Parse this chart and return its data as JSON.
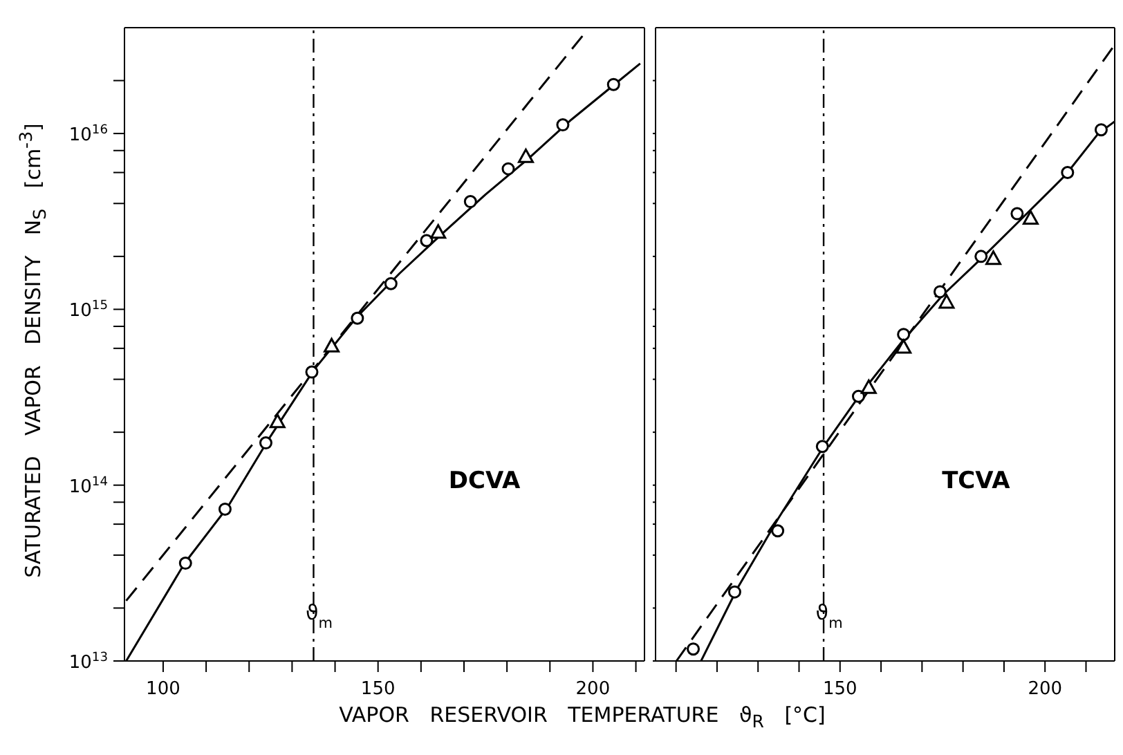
{
  "chart_data": [
    {
      "type": "scatter",
      "xlabel": "VAPOR RESERVOIR TEMPERATURE ϑ$_{R}$ [°C]",
      "ylabel": "SATURATED VAPOR DENSITY N$_{S}$ [cm$^{-3}$]",
      "log": "y",
      "xlim": [
        91,
        212
      ],
      "xticks": [
        100,
        {
          "value": 110,
          "label": null
        },
        {
          "value": 120,
          "label": null
        },
        {
          "value": 130,
          "label": null
        },
        {
          "value": 140,
          "label": null
        },
        150,
        {
          "value": 160,
          "label": null
        },
        {
          "value": 170,
          "label": null
        },
        {
          "value": 180,
          "label": null
        },
        {
          "value": 190,
          "label": null
        },
        200,
        {
          "value": 210,
          "label": null
        }
      ],
      "ylim": [
        10000000000000.0,
        4e+16
      ],
      "yticks": [
        {
          "value": 10000000000000.0,
          "label": "10$^{13}$"
        },
        {
          "value": 20000000000000.0,
          "label": null
        },
        {
          "value": 40000000000000.0,
          "label": null
        },
        {
          "value": 60000000000000.0,
          "label": null
        },
        {
          "value": 80000000000000.0,
          "label": null
        },
        {
          "value": 100000000000000.0,
          "label": "10$^{14}$"
        },
        {
          "value": 200000000000000.0,
          "label": null
        },
        {
          "value": 400000000000000.0,
          "label": null
        },
        {
          "value": 600000000000000.0,
          "label": null
        },
        {
          "value": 800000000000000.0,
          "label": null
        },
        {
          "value": 1000000000000000.0,
          "label": "10$^{15}$"
        },
        {
          "value": 2000000000000000.0,
          "label": null
        },
        {
          "value": 4000000000000000.0,
          "label": null
        },
        {
          "value": 6000000000000000.0,
          "label": null
        },
        {
          "value": 8000000000000000.0,
          "label": null
        },
        {
          "value": 1e+16,
          "label": "10$^{16}$"
        },
        {
          "value": 2e+16,
          "label": null
        }
      ],
      "annotations": [
        "DCVA"
      ],
      "ref_lines": [
        {
          "axis": "x",
          "value": 135,
          "label": "ϑ$_{m}$",
          "color": "#000000"
        }
      ],
      "series": [
        {
          "marker": "circle",
          "color": "#000000",
          "x": [
            105.2,
            114.4,
            123.9,
            134.6,
            145.2,
            153,
            161.3,
            171.5,
            180.3,
            193,
            204.8
          ],
          "values": [
            36000000000000.0,
            73000000000000.0,
            174000000000000.0,
            440000000000000.0,
            890000000000000.0,
            1400000000000000.0,
            2460000000000000.0,
            4100000000000000.0,
            6300000000000000.0,
            1.12e+16,
            1.9e+16
          ]
        },
        {
          "marker": "triangle",
          "color": "#000000",
          "x": [
            126.6,
            139.2,
            164,
            184.4
          ],
          "values": [
            230000000000000.0,
            620000000000000.0,
            2750000000000000.0,
            7400000000000000.0
          ]
        },
        {
          "type": "line",
          "line_style": "solid",
          "color": "#000000",
          "x": [
            91.4,
            105,
            115,
            125,
            135,
            145,
            155,
            165,
            175,
            185,
            195,
            205,
            211
          ],
          "values": [
            10000000000000.0,
            36000000000000.0,
            75000000000000.0,
            190000000000000.0,
            450000000000000.0,
            900000000000000.0,
            1600000000000000.0,
            2700000000000000.0,
            4500000000000000.0,
            7200000000000000.0,
            1.2e+16,
            1.9e+16,
            2.5e+16
          ]
        },
        {
          "type": "line",
          "line_style": "dashed",
          "color": "#000000",
          "x": [
            91.4,
            198.4
          ],
          "values": [
            22000000000000.0,
            3.8e+16
          ]
        }
      ]
    },
    {
      "type": "scatter",
      "log": "y",
      "tick_labels": "x",
      "xlim": [
        105,
        217
      ],
      "xticks": [
        {
          "value": 110,
          "label": null
        },
        {
          "value": 120,
          "label": null
        },
        {
          "value": 130,
          "label": null
        },
        {
          "value": 140,
          "label": null
        },
        150,
        {
          "value": 160,
          "label": null
        },
        {
          "value": 170,
          "label": null
        },
        {
          "value": 180,
          "label": null
        },
        {
          "value": 190,
          "label": null
        },
        200,
        {
          "value": 210,
          "label": null
        }
      ],
      "ylim": [
        10000000000000.0,
        4e+16
      ],
      "yticks": [
        {
          "value": 10000000000000.0,
          "label": null
        },
        {
          "value": 20000000000000.0,
          "label": null
        },
        {
          "value": 40000000000000.0,
          "label": null
        },
        {
          "value": 60000000000000.0,
          "label": null
        },
        {
          "value": 80000000000000.0,
          "label": null
        },
        {
          "value": 100000000000000.0,
          "label": null
        },
        {
          "value": 200000000000000.0,
          "label": null
        },
        {
          "value": 400000000000000.0,
          "label": null
        },
        {
          "value": 600000000000000.0,
          "label": null
        },
        {
          "value": 800000000000000.0,
          "label": null
        },
        {
          "value": 1000000000000000.0,
          "label": null
        },
        {
          "value": 2000000000000000.0,
          "label": null
        },
        {
          "value": 4000000000000000.0,
          "label": null
        },
        {
          "value": 6000000000000000.0,
          "label": null
        },
        {
          "value": 8000000000000000.0,
          "label": null
        },
        {
          "value": 1e+16,
          "label": null
        },
        {
          "value": 2e+16,
          "label": null
        }
      ],
      "annotations": [
        "TCVA"
      ],
      "ref_lines": [
        {
          "axis": "x",
          "value": 146,
          "label": "ϑ$_{m}$",
          "color": "#000000"
        }
      ],
      "series": [
        {
          "marker": "circle",
          "color": "#000000",
          "x": [
            114.2,
            124.3,
            134.8,
            145.7,
            154.5,
            165.5,
            174.4,
            184.4,
            193.2,
            205.5,
            213.7
          ],
          "values": [
            11700000000000.0,
            24700000000000.0,
            55000000000000.0,
            166000000000000.0,
            320000000000000.0,
            720000000000000.0,
            1260000000000000.0,
            2000000000000000.0,
            3500000000000000.0,
            6000000000000000.0,
            1.05e+16
          ]
        },
        {
          "marker": "triangle",
          "color": "#000000",
          "x": [
            157,
            165.5,
            176,
            187.4,
            196.5
          ],
          "values": [
            360000000000000.0,
            610000000000000.0,
            1100000000000000.0,
            1950000000000000.0,
            3300000000000000.0
          ]
        },
        {
          "type": "line",
          "line_style": "solid",
          "color": "#000000",
          "x": [
            116.1,
            125,
            135,
            146,
            155,
            165,
            175,
            185,
            195,
            205,
            213,
            217
          ],
          "values": [
            10000000000000.0,
            26000000000000.0,
            65000000000000.0,
            166000000000000.0,
            330000000000000.0,
            650000000000000.0,
            1200000000000000.0,
            2000000000000000.0,
            3400000000000000.0,
            5800000000000000.0,
            1e+16,
            1.17e+16
          ]
        },
        {
          "type": "line",
          "line_style": "dashed",
          "color": "#000000",
          "x": [
            110.1,
            217
          ],
          "values": [
            10000000000000.0,
            3.2e+16
          ]
        }
      ]
    }
  ]
}
